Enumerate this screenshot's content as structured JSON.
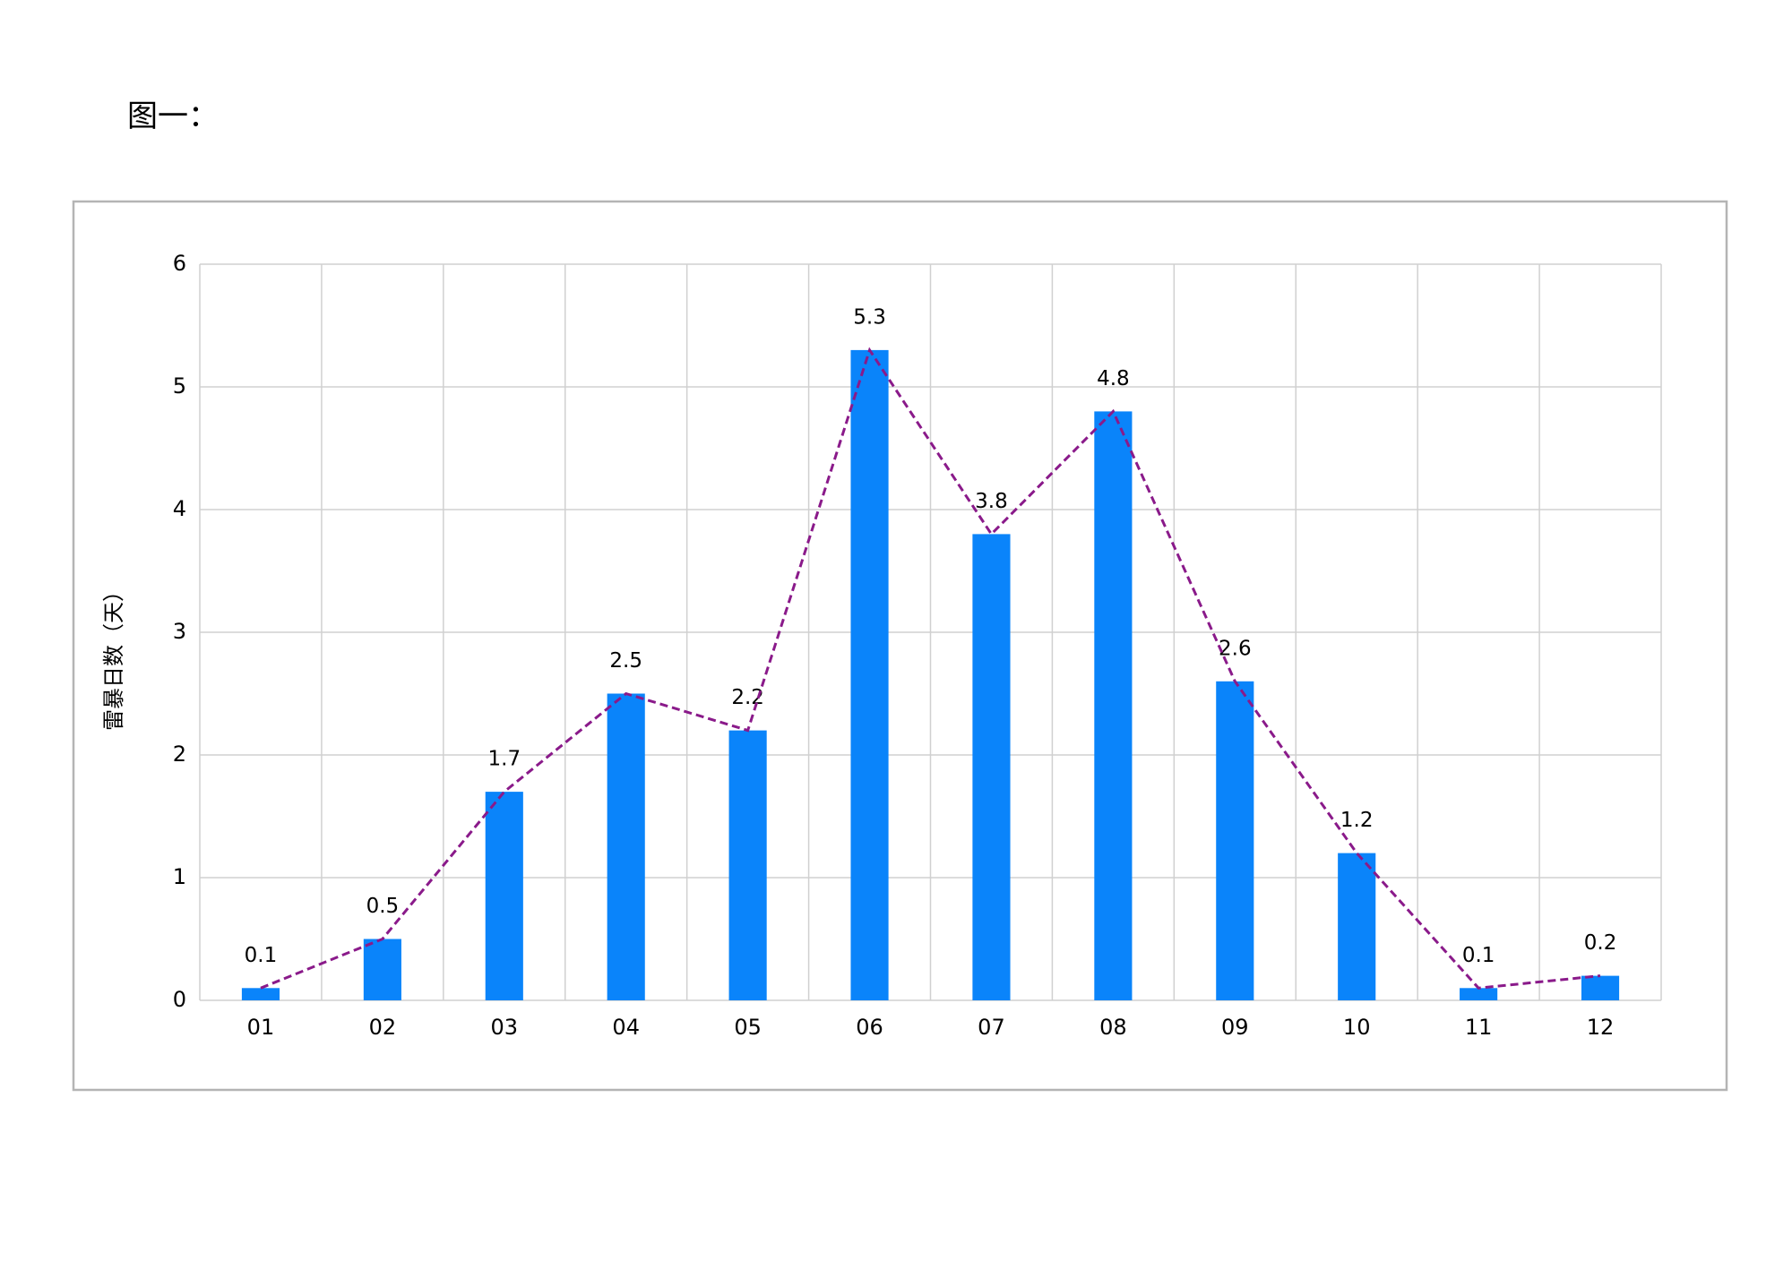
{
  "chart_data": {
    "type": "bar",
    "title": "图一：",
    "y_label": "雷暴日数（天）",
    "categories": [
      "01",
      "02",
      "03",
      "04",
      "05",
      "06",
      "07",
      "08",
      "09",
      "10",
      "11",
      "12"
    ],
    "values": [
      0.1,
      0.5,
      1.7,
      2.5,
      2.2,
      5.3,
      3.8,
      4.8,
      2.6,
      1.2,
      0.1,
      0.2
    ],
    "color": "#0a84fa",
    "line_overlay": {
      "color": "#8a1a8a",
      "dashed": true
    },
    "ylim": [
      0,
      6
    ],
    "yticks": [
      0,
      1,
      2,
      3,
      4,
      5,
      6
    ],
    "grid": true
  }
}
